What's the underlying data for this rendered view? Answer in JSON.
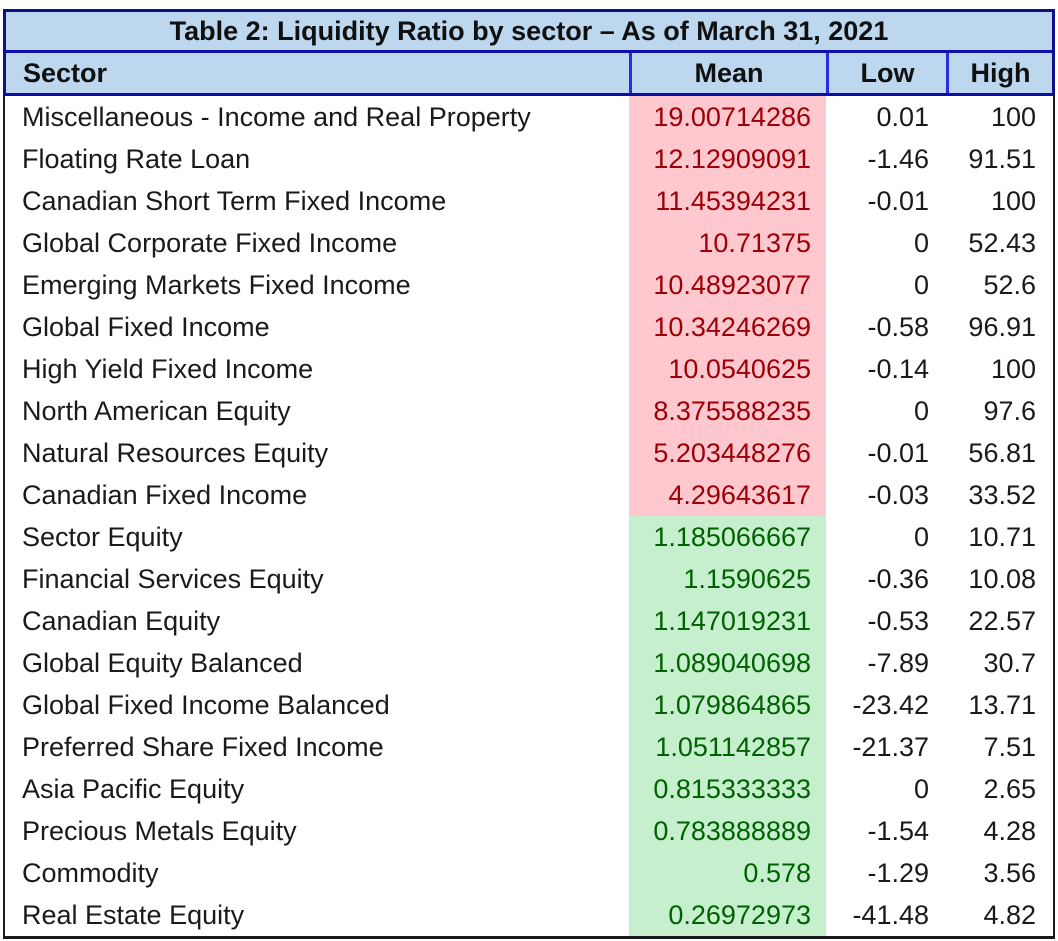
{
  "table": {
    "title": "Table 2: Liquidity Ratio by sector – As of March 31, 2021",
    "columns": {
      "sector": "Sector",
      "mean": "Mean",
      "low": "Low",
      "high": "High"
    },
    "rows": [
      {
        "sector": "Miscellaneous - Income and Real Property",
        "mean": "19.00714286",
        "low": "0.01",
        "high": "100",
        "mean_style": "red"
      },
      {
        "sector": "Floating Rate Loan",
        "mean": "12.12909091",
        "low": "-1.46",
        "high": "91.51",
        "mean_style": "red"
      },
      {
        "sector": "Canadian Short Term Fixed Income",
        "mean": "11.45394231",
        "low": "-0.01",
        "high": "100",
        "mean_style": "red"
      },
      {
        "sector": "Global Corporate Fixed Income",
        "mean": "10.71375",
        "low": "0",
        "high": "52.43",
        "mean_style": "red"
      },
      {
        "sector": "Emerging Markets Fixed Income",
        "mean": "10.48923077",
        "low": "0",
        "high": "52.6",
        "mean_style": "red"
      },
      {
        "sector": "Global Fixed Income",
        "mean": "10.34246269",
        "low": "-0.58",
        "high": "96.91",
        "mean_style": "red"
      },
      {
        "sector": "High Yield Fixed Income",
        "mean": "10.0540625",
        "low": "-0.14",
        "high": "100",
        "mean_style": "red"
      },
      {
        "sector": "North American Equity",
        "mean": "8.375588235",
        "low": "0",
        "high": "97.6",
        "mean_style": "red"
      },
      {
        "sector": "Natural Resources Equity",
        "mean": "5.203448276",
        "low": "-0.01",
        "high": "56.81",
        "mean_style": "red"
      },
      {
        "sector": "Canadian Fixed Income",
        "mean": "4.29643617",
        "low": "-0.03",
        "high": "33.52",
        "mean_style": "red"
      },
      {
        "sector": "Sector Equity",
        "mean": "1.185066667",
        "low": "0",
        "high": "10.71",
        "mean_style": "green"
      },
      {
        "sector": "Financial Services Equity",
        "mean": "1.1590625",
        "low": "-0.36",
        "high": "10.08",
        "mean_style": "green"
      },
      {
        "sector": "Canadian Equity",
        "mean": "1.147019231",
        "low": "-0.53",
        "high": "22.57",
        "mean_style": "green"
      },
      {
        "sector": "Global Equity Balanced",
        "mean": "1.089040698",
        "low": "-7.89",
        "high": "30.7",
        "mean_style": "green"
      },
      {
        "sector": "Global Fixed Income Balanced",
        "mean": "1.079864865",
        "low": "-23.42",
        "high": "13.71",
        "mean_style": "green"
      },
      {
        "sector": "Preferred Share Fixed Income",
        "mean": "1.051142857",
        "low": "-21.37",
        "high": "7.51",
        "mean_style": "green"
      },
      {
        "sector": "Asia Pacific Equity",
        "mean": "0.815333333",
        "low": "0",
        "high": "2.65",
        "mean_style": "green"
      },
      {
        "sector": "Precious Metals Equity",
        "mean": "0.783888889",
        "low": "-1.54",
        "high": "4.28",
        "mean_style": "green"
      },
      {
        "sector": "Commodity",
        "mean": "0.578",
        "low": "-1.29",
        "high": "3.56",
        "mean_style": "green"
      },
      {
        "sector": "Real Estate Equity",
        "mean": "0.26972973",
        "low": "-41.48",
        "high": "4.82",
        "mean_style": "green"
      }
    ],
    "colors": {
      "header_bg": "#BDD7EE",
      "outer_border_navy": "#10108C",
      "header_divider_blue": "#2A2ADF",
      "body_border_black": "#1a1a1a",
      "mean_red_bg": "#FFC7CE",
      "mean_red_text": "#9C0006",
      "mean_green_bg": "#C6EFCE",
      "mean_green_text": "#006100"
    }
  }
}
